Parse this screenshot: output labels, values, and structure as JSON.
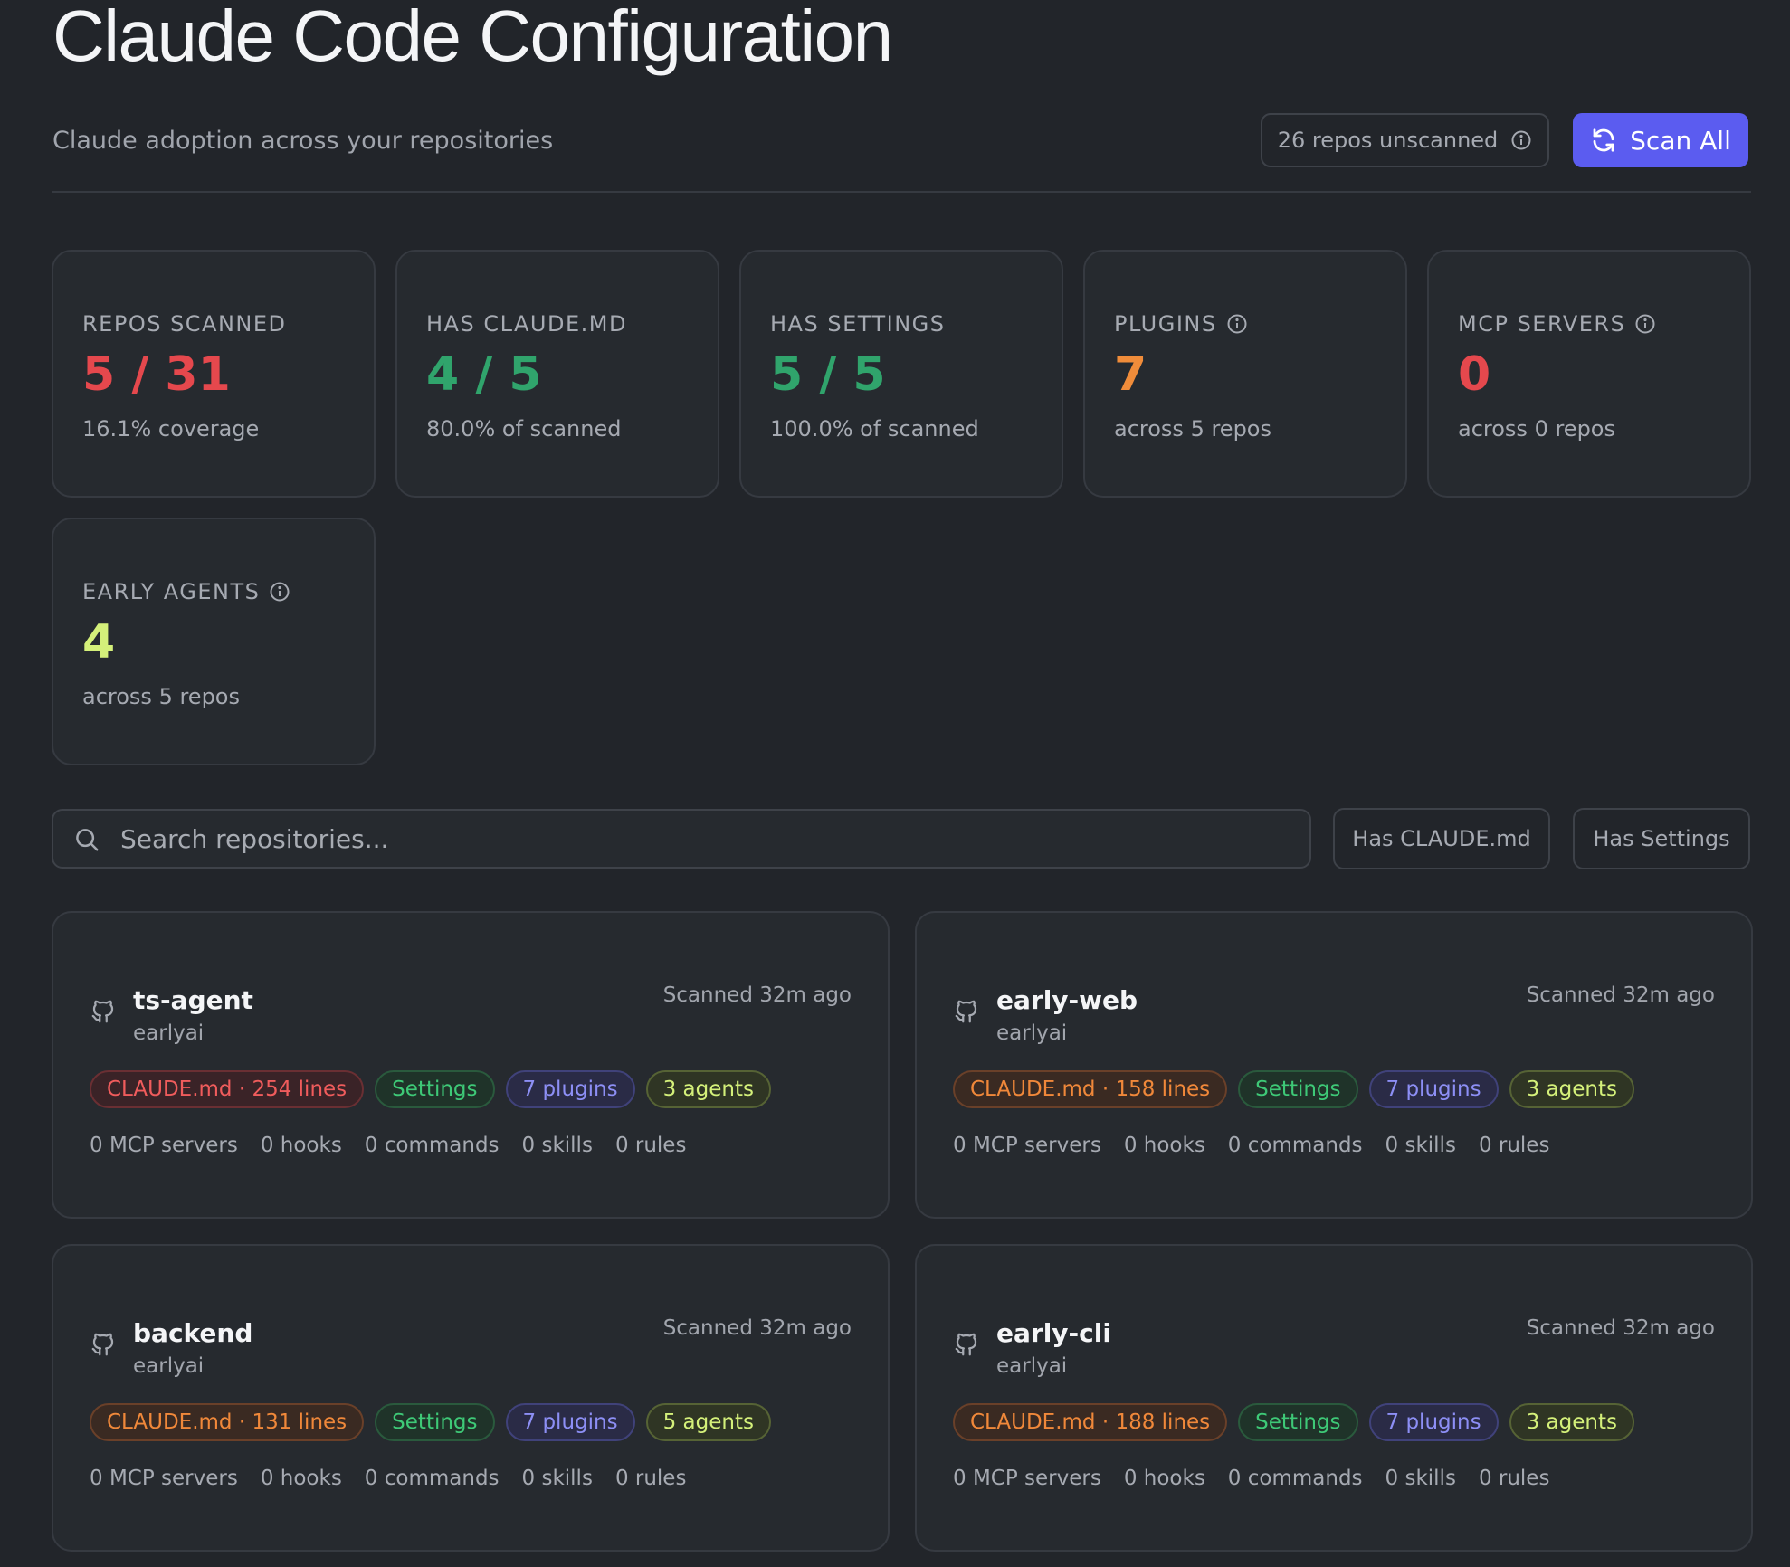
{
  "header": {
    "title": "Claude Code Configuration",
    "subtitle": "Claude adoption across your repositories",
    "unscanned_label": "26 repos unscanned",
    "scan_all_label": "Scan All"
  },
  "stats": [
    {
      "label": "REPOS SCANNED",
      "value": "5 / 31",
      "sub": "16.1% coverage",
      "color": "#e5484d",
      "info": false
    },
    {
      "label": "HAS CLAUDE.MD",
      "value": "4 / 5",
      "sub": "80.0% of scanned",
      "color": "#30a46c",
      "info": false
    },
    {
      "label": "HAS SETTINGS",
      "value": "5 / 5",
      "sub": "100.0% of scanned",
      "color": "#30a46c",
      "info": false
    },
    {
      "label": "PLUGINS",
      "value": "7",
      "sub": "across 5 repos",
      "color": "#f08c3a",
      "info": true
    },
    {
      "label": "MCP SERVERS",
      "value": "0",
      "sub": "across 0 repos",
      "color": "#e5484d",
      "info": true
    },
    {
      "label": "EARLY AGENTS",
      "value": "4",
      "sub": "across 5 repos",
      "color": "#d4f07a",
      "info": true
    }
  ],
  "search": {
    "placeholder": "Search repositories..."
  },
  "filters": {
    "claude_md": "Has CLAUDE.md",
    "settings": "Has Settings"
  },
  "repos": [
    {
      "name": "ts-agent",
      "owner": "earlyai",
      "scanned": "Scanned 32m ago",
      "claude": "CLAUDE.md · 254 lines",
      "settings": "Settings",
      "plugins": "7 plugins",
      "agents": "3 agents",
      "mcp": "0 MCP servers",
      "hooks": "0 hooks",
      "commands": "0 commands",
      "skills": "0 skills",
      "rules": "0 rules"
    },
    {
      "name": "early-web",
      "owner": "earlyai",
      "scanned": "Scanned 32m ago",
      "claude": "CLAUDE.md · 158 lines",
      "settings": "Settings",
      "plugins": "7 plugins",
      "agents": "3 agents",
      "mcp": "0 MCP servers",
      "hooks": "0 hooks",
      "commands": "0 commands",
      "skills": "0 skills",
      "rules": "0 rules"
    },
    {
      "name": "backend",
      "owner": "earlyai",
      "scanned": "Scanned 32m ago",
      "claude": "CLAUDE.md · 131 lines",
      "settings": "Settings",
      "plugins": "7 plugins",
      "agents": "5 agents",
      "mcp": "0 MCP servers",
      "hooks": "0 hooks",
      "commands": "0 commands",
      "skills": "0 skills",
      "rules": "0 rules"
    },
    {
      "name": "early-cli",
      "owner": "earlyai",
      "scanned": "Scanned 32m ago",
      "claude": "CLAUDE.md · 188 lines",
      "settings": "Settings",
      "plugins": "7 plugins",
      "agents": "3 agents",
      "mcp": "0 MCP servers",
      "hooks": "0 hooks",
      "commands": "0 commands",
      "skills": "0 skills",
      "rules": "0 rules"
    }
  ],
  "icons": {
    "info": "info-circle-icon",
    "refresh": "refresh-icon",
    "search": "search-icon",
    "repo": "github-icon"
  }
}
